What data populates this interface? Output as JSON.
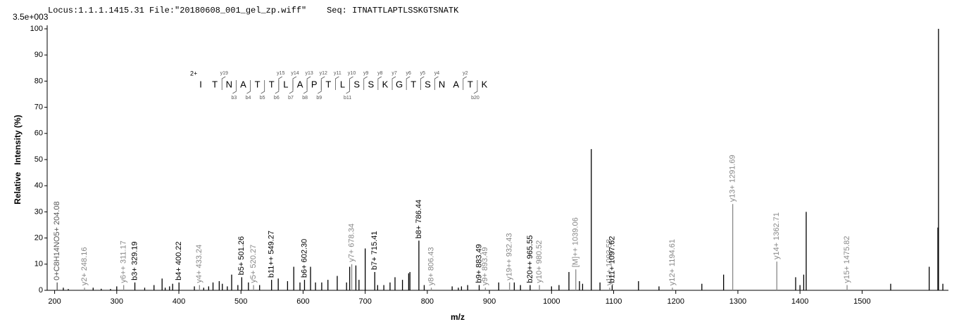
{
  "chart_data": {
    "type": "spectrum",
    "header": "Locus:1.1.1.1415.31 File:\"20180608_001_gel_zp.wiff\"    Seq: ITNATTLAPTLSSKGTSNATK",
    "intensity_scale_label": "3.5e+003",
    "y_label": "Relative   Intensity (%)",
    "x_label": "m/z",
    "xlim": [
      188,
      1639
    ],
    "ylim": [
      0,
      100
    ],
    "xticks": [
      200,
      300,
      400,
      500,
      600,
      700,
      800,
      900,
      1000,
      1100,
      1200,
      1300,
      1400,
      1500
    ],
    "yticks": [
      0,
      10,
      20,
      30,
      40,
      50,
      60,
      70,
      80,
      90,
      100
    ],
    "peak_color": "#000000",
    "peaks": {
      "mz": [
        214,
        222,
        262,
        275,
        290,
        300,
        345,
        360,
        373,
        378,
        385,
        390,
        425,
        440,
        448,
        455,
        465,
        470,
        478,
        485,
        495,
        512,
        530,
        560,
        575,
        585,
        595,
        612,
        620,
        630,
        640,
        655,
        670,
        675,
        685,
        690,
        700,
        720,
        730,
        740,
        748,
        760,
        770,
        772,
        795,
        840,
        850,
        855,
        865,
        915,
        940,
        950,
        1000,
        1012,
        1028,
        1045,
        1050,
        1064,
        1078,
        1140,
        1173,
        1242,
        1277,
        1393,
        1400,
        1406,
        1410,
        1546,
        1608,
        1622,
        1623,
        1630
      ],
      "intensity": [
        1,
        0.5,
        1,
        0.6,
        0.5,
        1.5,
        1,
        2,
        4.5,
        1,
        1.5,
        2.5,
        1.5,
        1,
        1.5,
        3,
        3.5,
        2.5,
        1.5,
        6,
        2,
        3,
        2,
        4.5,
        3.5,
        9,
        3,
        9,
        3,
        3,
        4,
        5.5,
        3,
        9,
        9.5,
        4,
        16,
        2,
        2,
        3,
        5,
        4,
        6.5,
        7,
        2,
        1.5,
        1,
        1.5,
        2,
        3,
        3,
        2,
        1.5,
        2,
        7,
        3.5,
        2.5,
        54,
        3,
        3.5,
        1.5,
        2.5,
        6,
        5,
        2,
        6,
        30,
        2.5,
        9,
        24,
        100,
        2.5
      ]
    },
    "annotated_peaks": [
      {
        "mz": 204.08,
        "intensity": 3,
        "label": "0+C8H14NO5+ 204.08",
        "color": "#555555"
      },
      {
        "mz": 248.16,
        "intensity": 1,
        "label": "y2+ 248.16",
        "color": "#888888"
      },
      {
        "mz": 311.17,
        "intensity": 2,
        "label": "y6++ 311.17",
        "color": "#888888"
      },
      {
        "mz": 329.19,
        "intensity": 3,
        "label": "b3+ 329.19",
        "color": "#000000"
      },
      {
        "mz": 400.22,
        "intensity": 3,
        "label": "b4+ 400.22",
        "color": "#000000"
      },
      {
        "mz": 433.24,
        "intensity": 2,
        "label": "y4+ 433.24",
        "color": "#888888"
      },
      {
        "mz": 501.26,
        "intensity": 5,
        "label": "b5+ 501.26",
        "color": "#000000"
      },
      {
        "mz": 520.27,
        "intensity": 2,
        "label": "y5+ 520.27",
        "color": "#888888"
      },
      {
        "mz": 549.27,
        "intensity": 4,
        "label": "b11++ 549.27",
        "color": "#000000"
      },
      {
        "mz": 602.3,
        "intensity": 4,
        "label": "b6+ 602.30",
        "color": "#000000"
      },
      {
        "mz": 678.34,
        "intensity": 10,
        "label": "y7+ 678.34",
        "color": "#888888"
      },
      {
        "mz": 715.41,
        "intensity": 7,
        "label": "b7+ 715.41",
        "color": "#000000"
      },
      {
        "mz": 786.44,
        "intensity": 19,
        "label": "b8+ 786.44",
        "color": "#000000"
      },
      {
        "mz": 806.43,
        "intensity": 1,
        "label": "y8+ 806.43",
        "color": "#888888"
      },
      {
        "mz": 883.49,
        "intensity": 2,
        "label": "b9+ 883.49",
        "color": "#000000"
      },
      {
        "mz": 893.49,
        "intensity": 1,
        "label": "y9+ 893.49",
        "color": "#888888"
      },
      {
        "mz": 932.43,
        "intensity": 3,
        "label": "y19++ 932.43",
        "color": "#888888"
      },
      {
        "mz": 965.55,
        "intensity": 2,
        "label": "b20++ 965.55",
        "color": "#000000"
      },
      {
        "mz": 980.52,
        "intensity": 2,
        "label": "y10+ 980.52",
        "color": "#888888"
      },
      {
        "mz": 1039.06,
        "intensity": 8,
        "label": "[M]++ 1039.06",
        "color": "#888888"
      },
      {
        "mz": 1093.58,
        "intensity": 1,
        "label": "y11+ 1093.58",
        "color": "#888888"
      },
      {
        "mz": 1097.62,
        "intensity": 2,
        "label": "b11+ 1097.62",
        "color": "#000000"
      },
      {
        "mz": 1194.61,
        "intensity": 1,
        "label": "y12+ 1194.61",
        "color": "#888888"
      },
      {
        "mz": 1291.69,
        "intensity": 33,
        "label": "y13+ 1291.69",
        "color": "#888888"
      },
      {
        "mz": 1362.71,
        "intensity": 11,
        "label": "y14+ 1362.71",
        "color": "#888888"
      },
      {
        "mz": 1475.82,
        "intensity": 2,
        "label": "y15+ 1475.82",
        "color": "#888888"
      }
    ],
    "sequence_annotation": {
      "charge": "2+",
      "residues": [
        "I",
        "T",
        "N",
        "A",
        "T",
        "T",
        "L",
        "A",
        "P",
        "T",
        "L",
        "S",
        "S",
        "K",
        "G",
        "T",
        "S",
        "N",
        "A",
        "T",
        "K"
      ],
      "y_ions": [
        "y19",
        "y15",
        "y14",
        "y13",
        "y12",
        "y11",
        "y10",
        "y9",
        "y8",
        "y7",
        "y6",
        "y5",
        "y4",
        "y2"
      ],
      "b_ions": [
        "b3",
        "b4",
        "b5",
        "b6",
        "b7",
        "b8",
        "b9",
        "b11",
        "b20"
      ]
    }
  }
}
